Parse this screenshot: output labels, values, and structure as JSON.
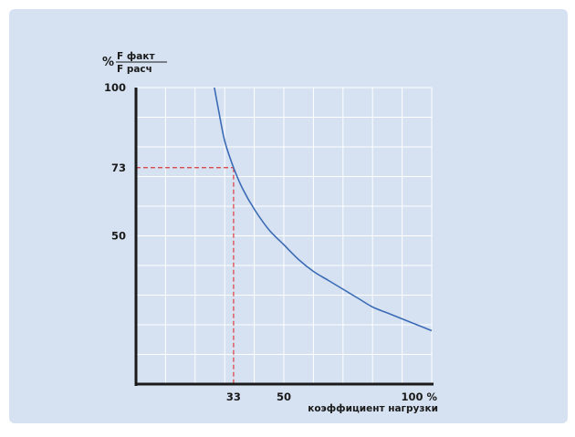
{
  "chart_data": {
    "type": "line",
    "y_header": {
      "percent": "%",
      "numerator": "F факт",
      "denominator": "F расч"
    },
    "xlabel": "коэффициент нагрузки",
    "x_ticks": [
      {
        "value": 33,
        "label": "33"
      },
      {
        "value": 50,
        "label": "50"
      },
      {
        "value": 100,
        "label": "100 %"
      }
    ],
    "y_ticks": [
      {
        "value": 100,
        "label": "100"
      },
      {
        "value": 73,
        "label": "73"
      },
      {
        "value": 50,
        "label": "50"
      }
    ],
    "xlim": [
      0,
      100
    ],
    "ylim": [
      0,
      100
    ],
    "grid": true,
    "series": [
      {
        "x": [
          26.5,
          28,
          30,
          33,
          36,
          40,
          45,
          50,
          55,
          60,
          65,
          70,
          75,
          80,
          85,
          90,
          95,
          100
        ],
        "y": [
          100,
          92,
          82,
          73,
          66,
          59,
          52,
          47,
          42,
          38,
          35,
          32,
          29,
          26,
          24,
          22,
          20,
          18
        ]
      }
    ],
    "reference": {
      "x": 33,
      "y": 73
    },
    "colors": {
      "curve": "#3b6bb5",
      "reference": "#e03a3a",
      "axis": "#1a1a1a",
      "grid": "#ffffff",
      "background": "#d6e2f2"
    }
  }
}
